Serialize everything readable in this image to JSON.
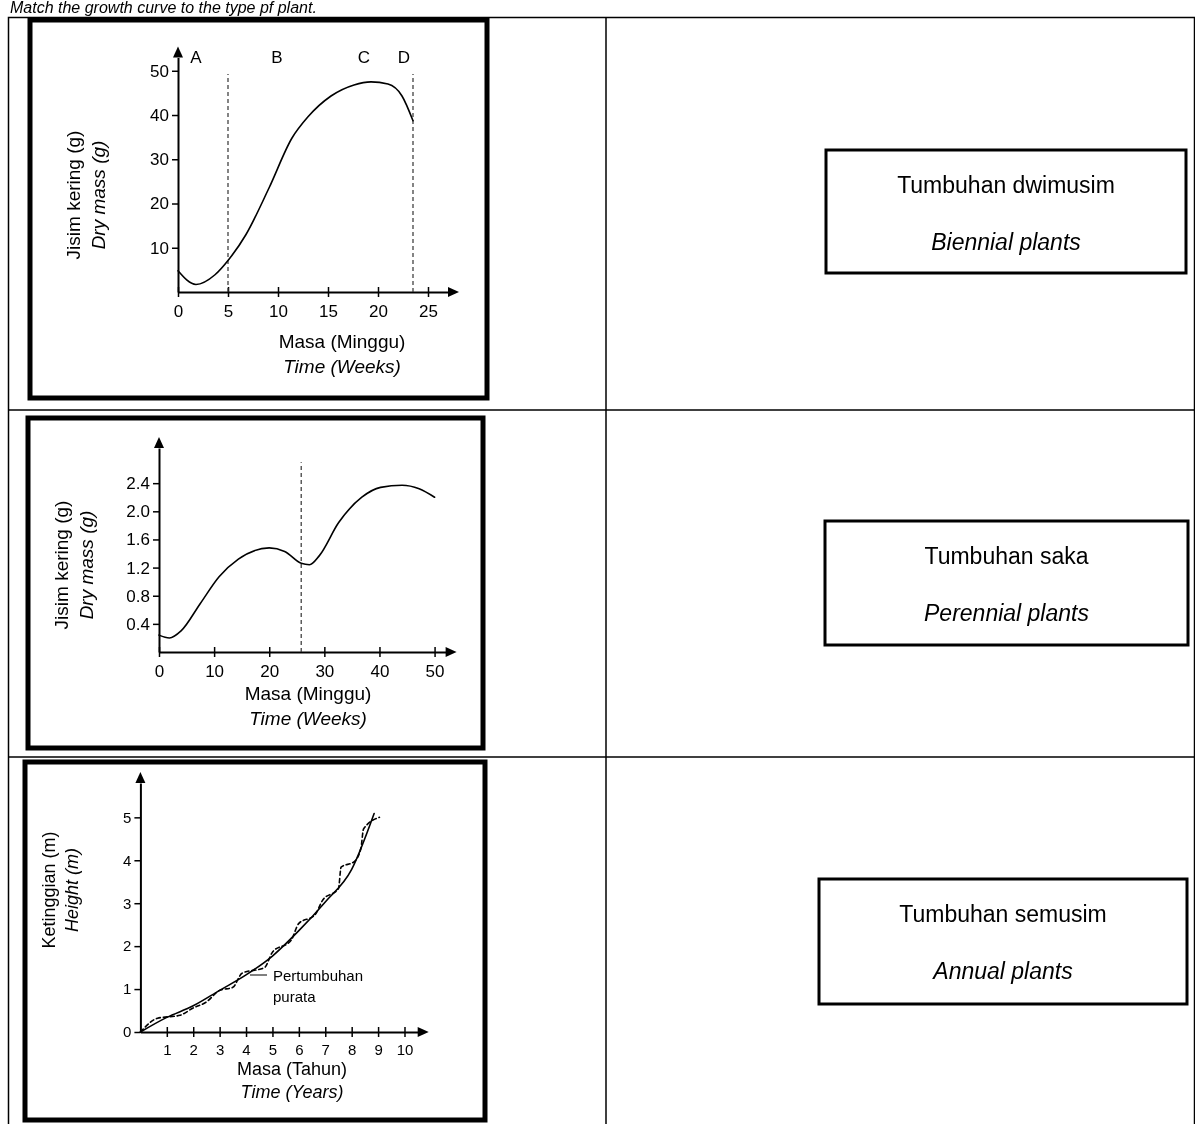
{
  "chart_data": [
    {
      "type": "other",
      "title": "Match the growth curve to the type pf plant."
    },
    {
      "type": "line",
      "xlabel": "Masa (Minggu)\nTime (Weeks)",
      "ylabel": "Jisim kering (g)\nDry mass (g)",
      "xlim": [
        0,
        27
      ],
      "ylim": [
        0,
        53
      ],
      "xticks": [
        0,
        5,
        10,
        15,
        20,
        25
      ],
      "yticks": [
        10,
        20,
        30,
        40,
        50
      ],
      "x": [
        0,
        1.8,
        3.7,
        5.1,
        6.8,
        9.1,
        11.4,
        13,
        15.3,
        17.6,
        19.3,
        21,
        22.4,
        23.5
      ],
      "series": [
        {
          "color": "#000000",
          "line_style": "solid",
          "values": [
            4.8,
            1.7,
            3.9,
            7.4,
            13,
            23.5,
            34.8,
            39.6,
            44.3,
            46.8,
            47.5,
            47,
            44.3,
            38.7
          ]
        }
      ],
      "ref_lines": [
        {
          "axis": "x",
          "value": 5,
          "line_style": "dashed"
        },
        {
          "axis": "x",
          "value": 23.5,
          "line_style": "dashed"
        }
      ],
      "annotations": [
        "A",
        "B",
        "C",
        "D"
      ]
    },
    {
      "type": "other",
      "title": "Tumbuhan dwimusim",
      "subtitle": "Biennial plants"
    },
    {
      "type": "line",
      "xlabel": "Masa (Minggu)\nTime (Weeks)",
      "ylabel": "Jisim kering (g)\nDry mass (g)",
      "xlim": [
        0,
        52
      ],
      "ylim": [
        0,
        2.9
      ],
      "xticks": [
        0,
        10,
        20,
        30,
        40,
        50
      ],
      "yticks": [
        0.4,
        0.8,
        1.2,
        1.6,
        {
          "value": 2,
          "label": "2.0"
        },
        2.4
      ],
      "x": [
        0,
        1.9,
        4,
        7.5,
        10.9,
        14.4,
        20,
        22.8,
        25.8,
        27.3,
        29.1,
        32.6,
        36.8,
        40.2,
        44.1,
        47.2,
        50
      ],
      "series": [
        {
          "color": "#000000",
          "line_style": "solid",
          "values": [
            0.24,
            0.2,
            0.3,
            0.69,
            1.07,
            1.32,
            1.48,
            1.43,
            1.26,
            1.24,
            1.37,
            1.84,
            2.2,
            2.34,
            2.37,
            2.32,
            2.2
          ]
        }
      ],
      "ref_lines": [
        {
          "axis": "x",
          "value": 25.8,
          "line_style": "dashed"
        }
      ]
    },
    {
      "type": "other",
      "title": "Tumbuhan saka",
      "subtitle": "Perennial plants"
    },
    {
      "type": "line",
      "xlabel": "Masa (Tahun)\nTime (Years)",
      "ylabel": "Ketinggian (m)\nHeight (m)",
      "xlim": [
        0,
        10.5
      ],
      "ylim": [
        0,
        5.8
      ],
      "xticks": [
        1,
        2,
        3,
        4,
        5,
        6,
        7,
        8,
        9,
        10
      ],
      "yticks": [
        0,
        1,
        2,
        3,
        4,
        5
      ],
      "series": [
        {
          "color": "#000000",
          "line_style": "solid",
          "x": [
            0,
            1,
            2,
            3,
            4,
            5,
            6,
            7,
            8,
            8.85
          ],
          "values": [
            0,
            0.34,
            0.61,
            0.97,
            1.33,
            1.77,
            2.36,
            3.03,
            3.79,
            5.09
          ]
        },
        {
          "color": "#000000",
          "line_style": "dashed",
          "x": [
            0,
            0.65,
            1.5,
            2,
            2.5,
            3,
            3.5,
            3.85,
            4.7,
            5,
            5.7,
            6,
            6.6,
            6.9,
            7.5,
            7.6,
            8.1,
            8.35,
            8.45,
            9.05
          ],
          "values": [
            0,
            0.32,
            0.39,
            0.56,
            0.7,
            0.97,
            1.04,
            1.37,
            1.5,
            1.86,
            2.13,
            2.53,
            2.72,
            3.07,
            3.34,
            3.84,
            3.97,
            4.28,
            4.73,
            5.0
          ]
        }
      ],
      "annotations": [
        "Pertumbuhan purata"
      ]
    },
    {
      "type": "other",
      "title": "Tumbuhan semusim",
      "subtitle": "Annual plants"
    }
  ]
}
